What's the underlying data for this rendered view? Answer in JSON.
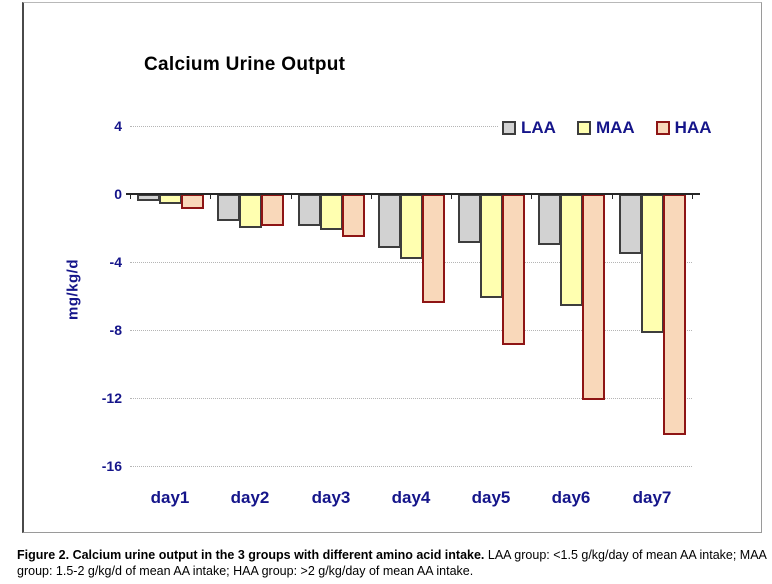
{
  "chart_data": {
    "type": "bar",
    "title": "Calcium Urine Output",
    "xlabel": "",
    "ylabel": "mg/kg/d",
    "categories": [
      "day1",
      "day2",
      "day3",
      "day4",
      "day5",
      "day6",
      "day7"
    ],
    "series": [
      {
        "name": "LAA",
        "fill": "#d2d2d2",
        "border": "#3d3d3d",
        "values": [
          -0.4,
          -1.6,
          -1.9,
          -3.2,
          -2.9,
          -3.0,
          -3.5
        ]
      },
      {
        "name": "MAA",
        "fill": "#ffffb0",
        "border": "#3d3d3d",
        "values": [
          -0.6,
          -2.0,
          -2.1,
          -3.8,
          -6.1,
          -6.6,
          -8.2
        ]
      },
      {
        "name": "HAA",
        "fill": "#f9d8ba",
        "border": "#8e1515",
        "values": [
          -0.9,
          -1.9,
          -2.5,
          -6.4,
          -8.9,
          -12.1,
          -14.2
        ]
      }
    ],
    "yticks": [
      4,
      0,
      -4,
      -8,
      -12,
      -16
    ],
    "ylim": [
      -16,
      4
    ],
    "grid": true,
    "legend_position": "top-right"
  },
  "caption": {
    "bold": "Figure 2.  Calcium urine output in the 3 groups with different amino acid intake.",
    "normal": "  LAA group: <1.5 g/kg/day of mean AA intake; MAA group: 1.5-2 g/kg/d of mean AA intake; HAA group: >2 g/kg/day of mean AA intake."
  },
  "colors": {
    "label_navy": "#15158a",
    "axis": "#262626",
    "gridline": "#b5b5b5",
    "laa_fill": "#d2d2d2",
    "maa_fill": "#ffffb0",
    "haa_fill": "#f9d8ba",
    "haa_border": "#8e1515",
    "bar_border": "#3d3d3d"
  }
}
